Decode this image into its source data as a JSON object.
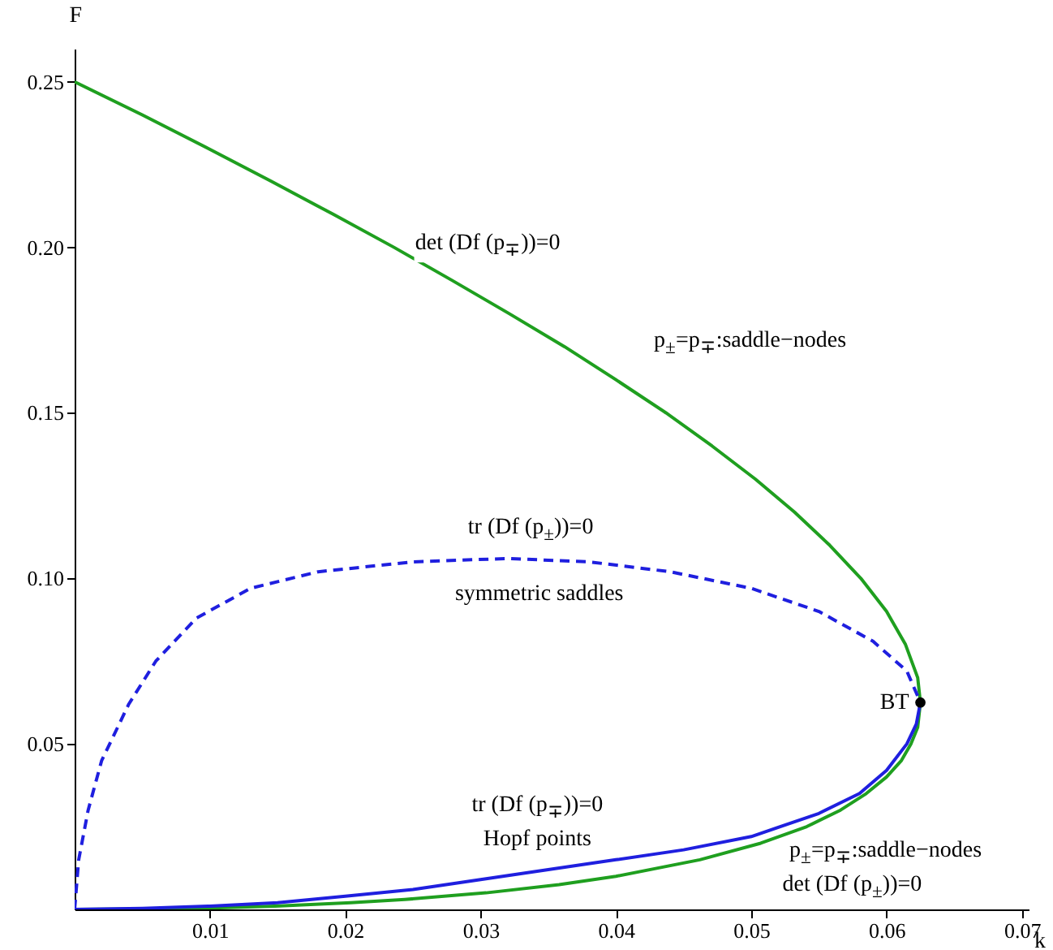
{
  "chart_data": {
    "type": "line",
    "xlabel": "k",
    "ylabel": "F",
    "xlim": [
      0,
      0.0705
    ],
    "ylim": [
      0,
      0.26
    ],
    "xticks": [
      0.01,
      0.02,
      0.03,
      0.04,
      0.05,
      0.06,
      0.07
    ],
    "yticks": [
      0.05,
      {
        "value": 0.1,
        "label": "0.10"
      },
      0.15,
      {
        "value": 0.2,
        "label": "0.20"
      },
      0.25
    ],
    "grid": false,
    "series": [
      {
        "type": "line",
        "color": "#1f9f1f",
        "line_style": "solid",
        "x": [
          0,
          0.0069,
          0.0107,
          0.0148,
          0.0204,
          0.0244,
          0.0304,
          0.0358,
          0.04,
          0.0462,
          0.0507,
          0.0541,
          0.0566,
          0.0585,
          0.06,
          0.0611,
          0.0618,
          0.0623,
          0.0625,
          0.0623,
          0.0614,
          0.06,
          0.0581,
          0.0558,
          0.0532,
          0.0503,
          0.0471,
          0.0437,
          0.04,
          0.0362,
          0.0321,
          0.0279,
          0.0236,
          0.0191,
          0.0145,
          0.0098,
          0.005,
          0
        ],
        "values": [
          0,
          0.0002,
          0.0005,
          0.001,
          0.002,
          0.003,
          0.005,
          0.0075,
          0.01,
          0.015,
          0.02,
          0.025,
          0.03,
          0.035,
          0.04,
          0.045,
          0.05,
          0.055,
          0.0625,
          0.07,
          0.08,
          0.09,
          0.1,
          0.11,
          0.12,
          0.13,
          0.14,
          0.15,
          0.16,
          0.17,
          0.18,
          0.19,
          0.2,
          0.21,
          0.22,
          0.23,
          0.24,
          0.25
        ]
      },
      {
        "type": "line",
        "color": "#1f1fdf",
        "line_style": "solid",
        "x": [
          0,
          0.005,
          0.01,
          0.015,
          0.02,
          0.025,
          0.03,
          0.035,
          0.04,
          0.045,
          0.05,
          0.055,
          0.058,
          0.06,
          0.0615,
          0.0622,
          0.0625
        ],
        "values": [
          0,
          0.0003,
          0.001,
          0.002,
          0.004,
          0.006,
          0.009,
          0.012,
          0.015,
          0.018,
          0.022,
          0.029,
          0.035,
          0.042,
          0.05,
          0.056,
          0.0625
        ]
      },
      {
        "type": "line",
        "color": "#1f1fdf",
        "line_style": "dashed",
        "x": [
          0,
          0.0003,
          0.001,
          0.002,
          0.004,
          0.006,
          0.009,
          0.013,
          0.018,
          0.025,
          0.032,
          0.038,
          0.044,
          0.05,
          0.055,
          0.059,
          0.0615,
          0.0625
        ],
        "values": [
          0,
          0.015,
          0.03,
          0.045,
          0.062,
          0.075,
          0.088,
          0.097,
          0.102,
          0.105,
          0.106,
          0.105,
          0.102,
          0.097,
          0.09,
          0.081,
          0.072,
          0.0625
        ]
      },
      {
        "type": "scatter",
        "color": "#000000",
        "marker": "circle",
        "x": [
          0.0625
        ],
        "values": [
          0.0625
        ]
      }
    ],
    "annotations": [
      "det (Df (p$_{∓}$))=0",
      "p$_{±}$=p$_{∓}$:saddle−nodes",
      "tr (Df (p$_{±}$))=0",
      "symmetric saddles",
      {
        "text": "BT",
        "x": 0.0625,
        "y": 0.0625
      },
      "tr (Df (p$_{∓}$))=0",
      "Hopf points",
      "p$_{±}$=p$_{∓}$:saddle−nodes",
      "det (Df (p$_{±}$))=0"
    ]
  }
}
